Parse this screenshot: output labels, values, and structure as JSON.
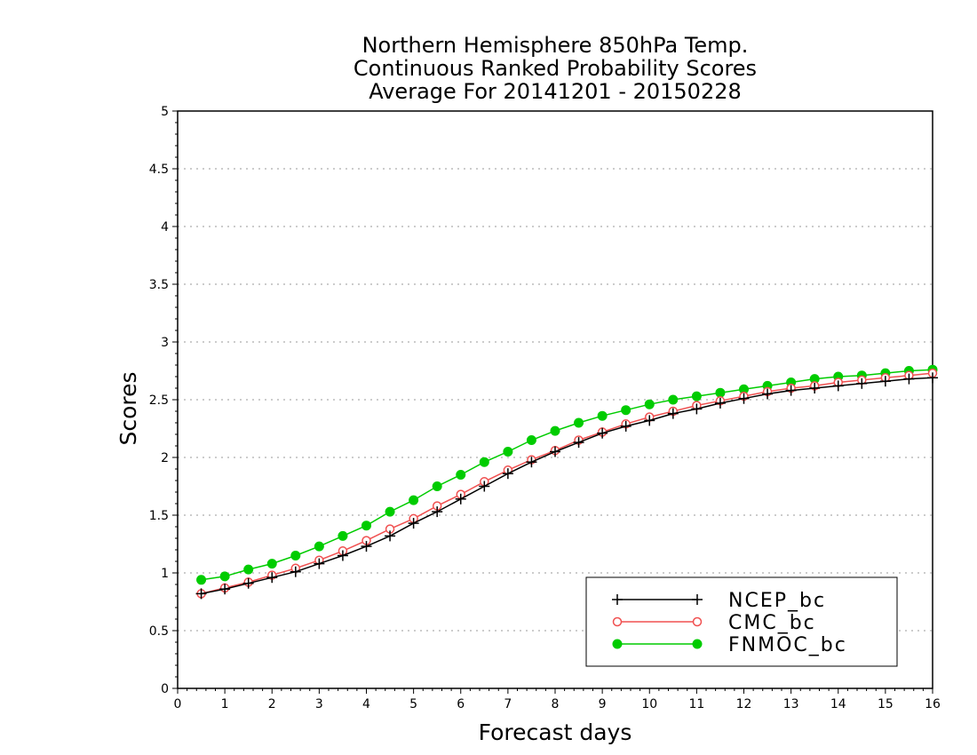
{
  "chart_data": {
    "type": "line",
    "title": [
      "Northern Hemisphere 850hPa Temp.",
      "Continuous Ranked Probability Scores",
      "Average For 20141201 - 20150228"
    ],
    "xlabel": "Forecast days",
    "ylabel": "Scores",
    "xlim": [
      0,
      16
    ],
    "ylim": [
      0,
      5
    ],
    "xticks": [
      "0",
      "1",
      "2",
      "3",
      "4",
      "5",
      "6",
      "7",
      "8",
      "9",
      "10",
      "11",
      "12",
      "13",
      "14",
      "15",
      "16"
    ],
    "yticks": [
      "0",
      "0.5",
      "1",
      "1.5",
      "2",
      "2.5",
      "3",
      "3.5",
      "4",
      "4.5",
      "5"
    ],
    "grid": true,
    "legend_position": "bottom-right",
    "x": [
      0.5,
      1,
      1.5,
      2,
      2.5,
      3,
      3.5,
      4,
      4.5,
      5,
      5.5,
      6,
      6.5,
      7,
      7.5,
      8,
      8.5,
      9,
      9.5,
      10,
      10.5,
      11,
      11.5,
      12,
      12.5,
      13,
      13.5,
      14,
      14.5,
      15,
      15.5,
      16
    ],
    "series": [
      {
        "name": "NCEP_bc",
        "color": "#000000",
        "marker": "plus",
        "values": [
          0.82,
          0.86,
          0.91,
          0.96,
          1.01,
          1.08,
          1.15,
          1.23,
          1.32,
          1.43,
          1.53,
          1.64,
          1.75,
          1.86,
          1.96,
          2.05,
          2.13,
          2.21,
          2.27,
          2.32,
          2.38,
          2.42,
          2.47,
          2.51,
          2.55,
          2.58,
          2.6,
          2.62,
          2.64,
          2.66,
          2.68,
          2.69
        ]
      },
      {
        "name": "CMC_bc",
        "color": "#f05050",
        "marker": "open-circle",
        "values": [
          0.82,
          0.87,
          0.92,
          0.98,
          1.04,
          1.11,
          1.19,
          1.28,
          1.38,
          1.47,
          1.58,
          1.68,
          1.79,
          1.89,
          1.98,
          2.06,
          2.15,
          2.22,
          2.29,
          2.35,
          2.4,
          2.45,
          2.49,
          2.53,
          2.57,
          2.6,
          2.62,
          2.65,
          2.67,
          2.69,
          2.71,
          2.73
        ]
      },
      {
        "name": "FNMOC_bc",
        "color": "#00cc00",
        "marker": "filled-circle",
        "values": [
          0.94,
          0.97,
          1.03,
          1.08,
          1.15,
          1.23,
          1.32,
          1.41,
          1.53,
          1.63,
          1.75,
          1.85,
          1.96,
          2.05,
          2.15,
          2.23,
          2.3,
          2.36,
          2.41,
          2.46,
          2.5,
          2.53,
          2.56,
          2.59,
          2.62,
          2.65,
          2.68,
          2.7,
          2.71,
          2.73,
          2.75,
          2.76
        ]
      }
    ]
  }
}
